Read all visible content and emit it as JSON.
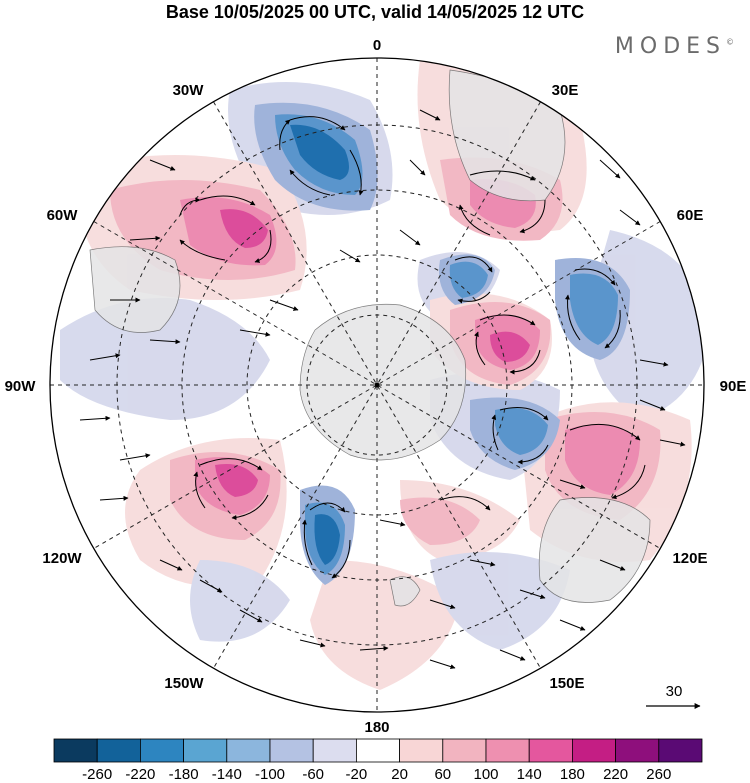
{
  "title": "Base 10/05/2025 00 UTC, valid 14/05/2025 12 UTC",
  "brand": {
    "text": "MODES",
    "mark": "©"
  },
  "map": {
    "projection": "south polar stereographic",
    "longitude_labels": {
      "top": "0",
      "top_right": "30E",
      "right_upper": "60E",
      "right": "90E",
      "right_lower": "120E",
      "bottom_right": "150E",
      "bottom": "180",
      "bottom_left": "150W",
      "left_lower": "120W",
      "left": "90W",
      "left_upper": "60W",
      "top_left": "30W"
    }
  },
  "reference_vector": {
    "label": "30"
  },
  "colorbar": {
    "ticks": [
      "-260",
      "-220",
      "-180",
      "-140",
      "-100",
      "-60",
      "-20",
      "20",
      "60",
      "100",
      "140",
      "180",
      "220",
      "260"
    ],
    "colors": [
      "#0b3a5f",
      "#12629a",
      "#2d85c0",
      "#5aa5d2",
      "#8cb6dd",
      "#b4c2e3",
      "#dcddef",
      "#ffffff",
      "#f8d6d6",
      "#f2b4c0",
      "#ee90b0",
      "#e4579e",
      "#c41e84",
      "#8e0f7c",
      "#5a0a74"
    ]
  },
  "anomaly_colors": {
    "neg_strong": "#1f6fae",
    "neg_mid": "#5a95cc",
    "neg_light": "#9fb3da",
    "neg_faint": "#d5d8ec",
    "pos_faint": "#f7dcdc",
    "pos_light": "#f2b8c4",
    "pos_mid": "#ec8bb1",
    "pos_strong": "#dc4d9b",
    "land": "#e8e8ea"
  }
}
